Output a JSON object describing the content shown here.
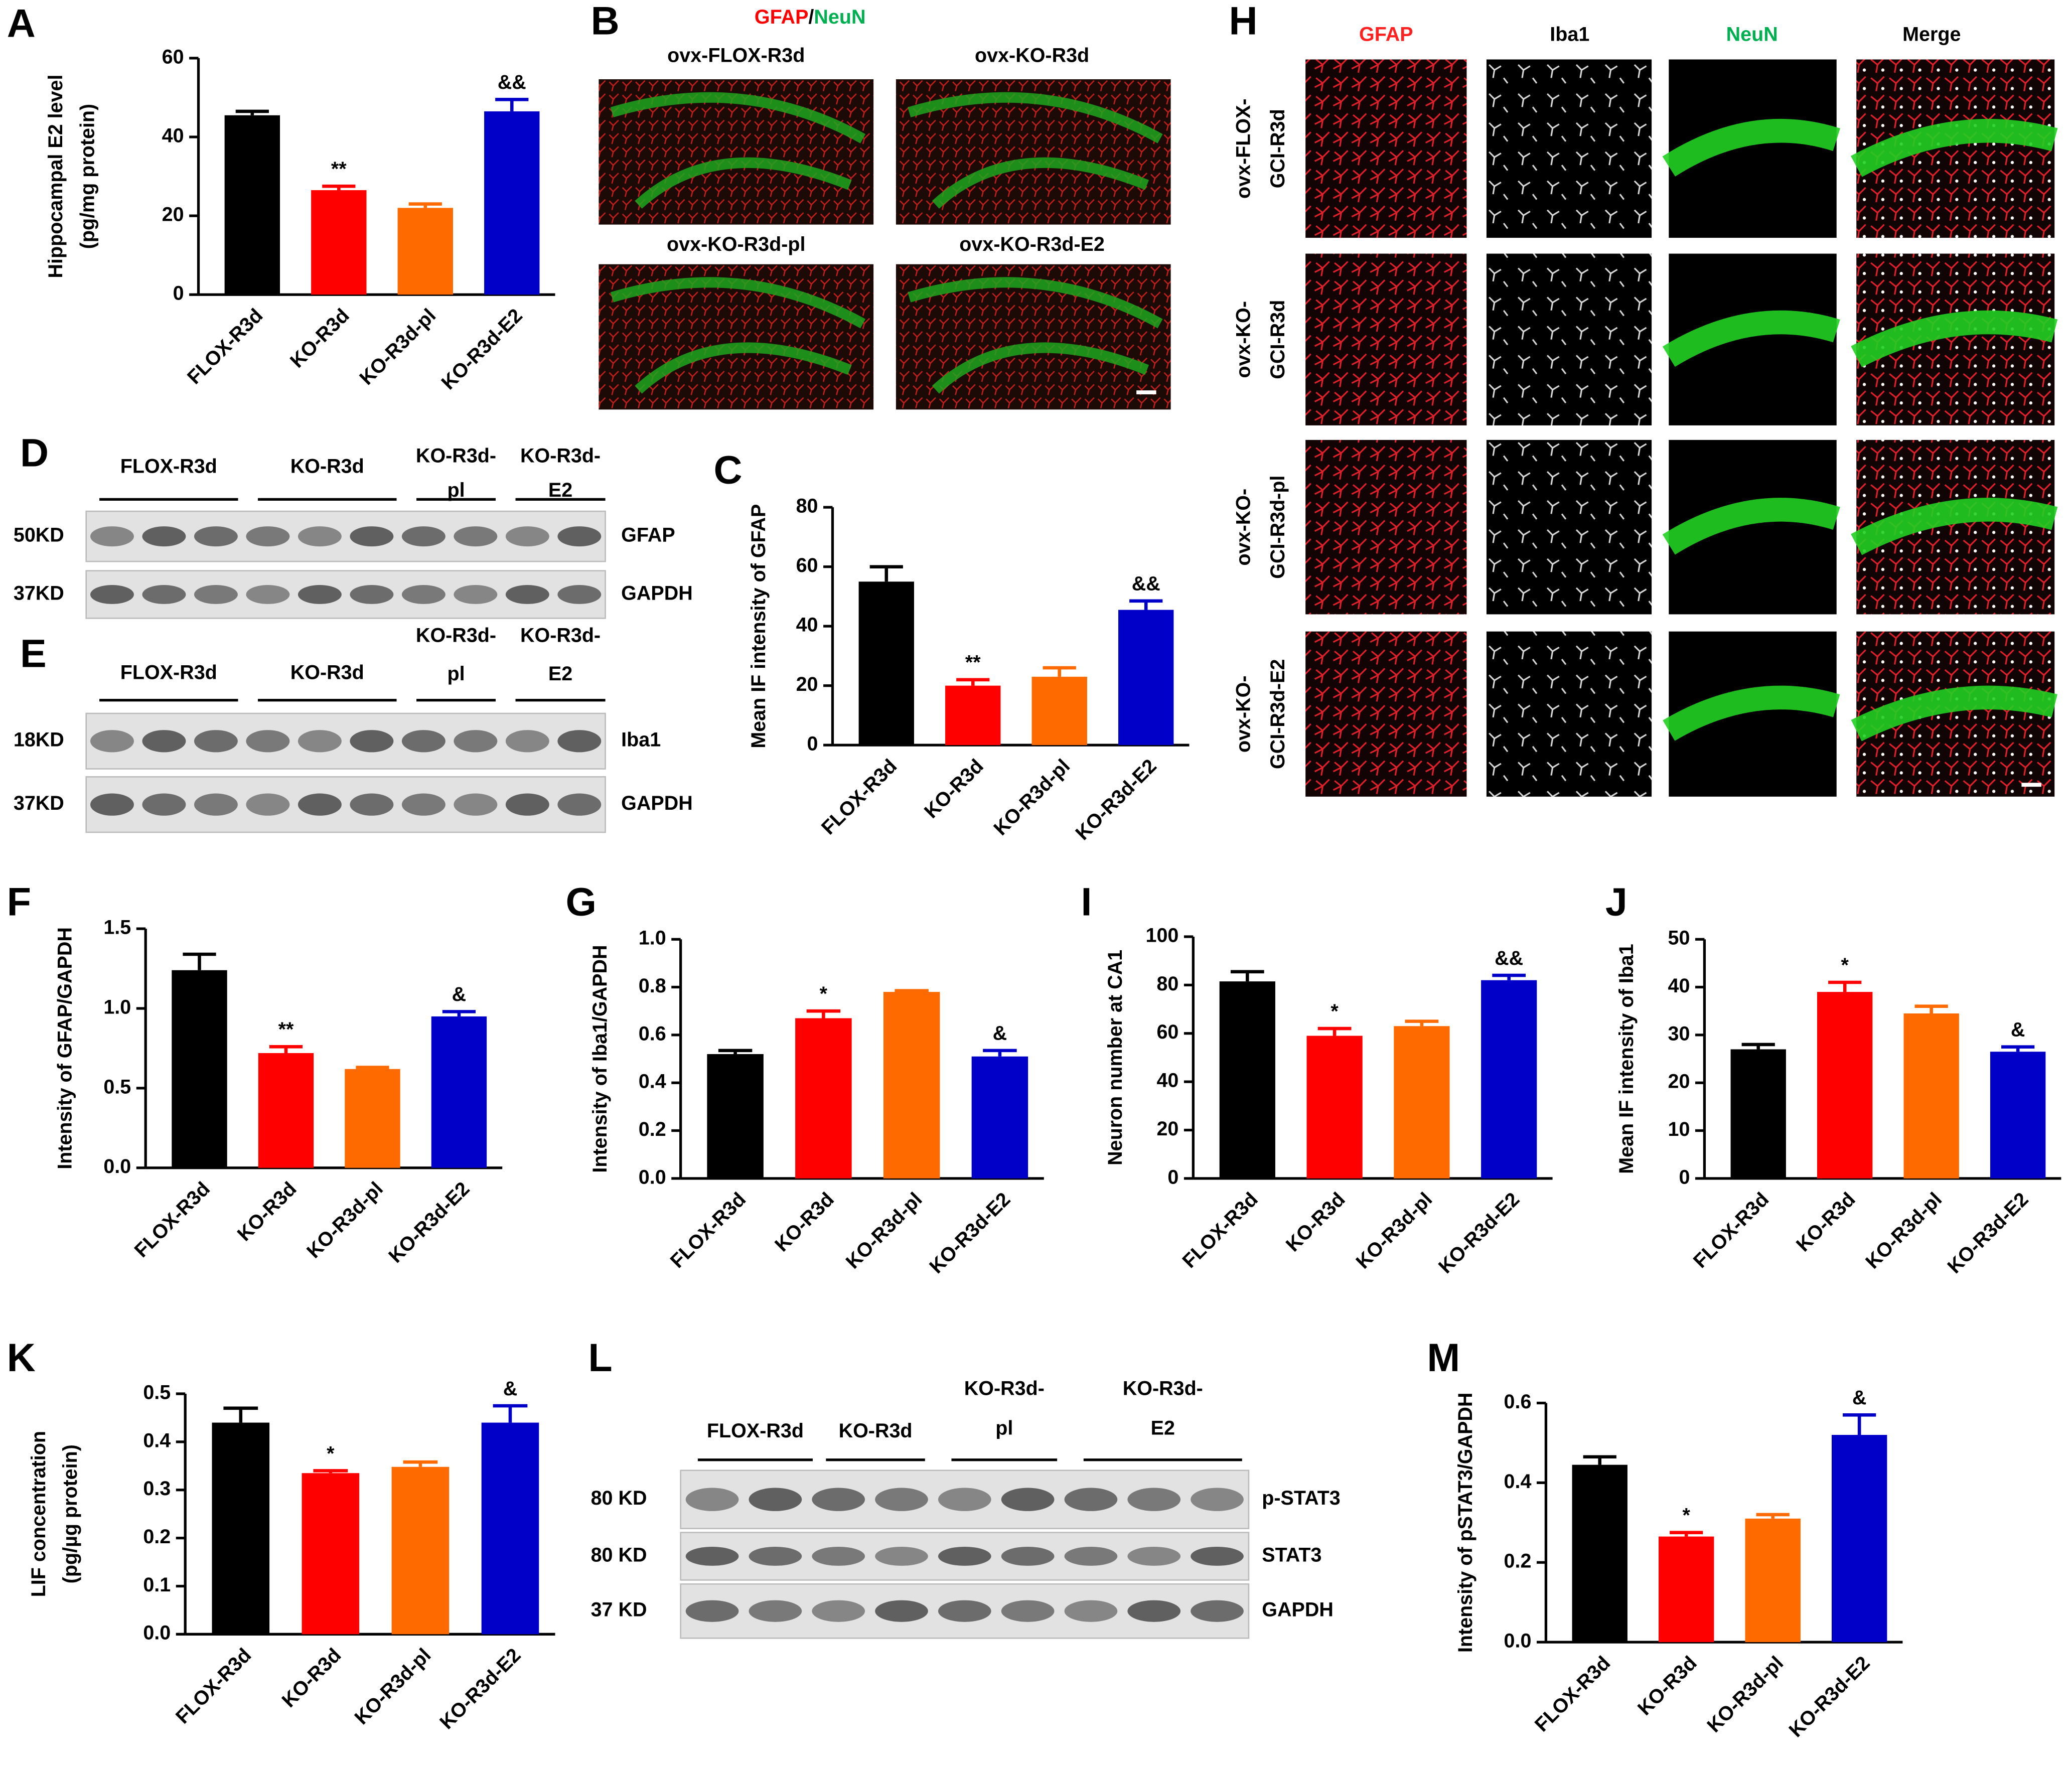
{
  "chart_data": [
    {
      "type": "bar",
      "panel": "A",
      "ylabel": [
        "Hippocampal E2 level",
        "(pg/mg protein)"
      ],
      "categories": [
        "FLOX-R3d",
        "KO-R3d",
        "KO-R3d-pl",
        "KO-R3d-E2"
      ],
      "colors": [
        "#000000",
        "#ff0000",
        "#ff6a00",
        "#0000c8"
      ],
      "values": [
        45.5,
        26.5,
        22,
        46.5
      ],
      "errors": [
        1,
        1,
        1,
        3
      ],
      "annotations": [
        null,
        "**",
        null,
        "&&"
      ],
      "ylim": [
        0,
        60
      ],
      "yticks": [
        0,
        20,
        40,
        60
      ]
    },
    {
      "type": "bar",
      "panel": "C",
      "ylabel": [
        "Mean IF intensity of GFAP"
      ],
      "categories": [
        "FLOX-R3d",
        "KO-R3d",
        "KO-R3d-pl",
        "KO-R3d-E2"
      ],
      "colors": [
        "#000000",
        "#ff0000",
        "#ff6a00",
        "#0000c8"
      ],
      "values": [
        55,
        20,
        23,
        45.5
      ],
      "errors": [
        5,
        2,
        3,
        3
      ],
      "annotations": [
        null,
        "**",
        null,
        "&&"
      ],
      "ylim": [
        0,
        80
      ],
      "yticks": [
        0,
        20,
        40,
        60,
        80
      ]
    },
    {
      "type": "bar",
      "panel": "F",
      "ylabel": [
        "Intensity of GFAP/GAPDH"
      ],
      "categories": [
        "FLOX-R3d",
        "KO-R3d",
        "KO-R3d-pl",
        "KO-R3d-E2"
      ],
      "colors": [
        "#000000",
        "#ff0000",
        "#ff6a00",
        "#0000c8"
      ],
      "values": [
        1.24,
        0.72,
        0.62,
        0.95
      ],
      "errors": [
        0.1,
        0.04,
        0.01,
        0.03
      ],
      "annotations": [
        null,
        "**",
        null,
        "&"
      ],
      "ylim": [
        0,
        1.5
      ],
      "yticks": [
        {
          "value": 0,
          "label": "0.0"
        },
        0.5,
        {
          "value": 1,
          "label": "1.0"
        },
        1.5
      ]
    },
    {
      "type": "bar",
      "panel": "G",
      "ylabel": [
        "Intensity of Iba1/GAPDH"
      ],
      "categories": [
        "FLOX-R3d",
        "KO-R3d",
        "KO-R3d-pl",
        "KO-R3d-E2"
      ],
      "colors": [
        "#000000",
        "#ff0000",
        "#ff6a00",
        "#0000c8"
      ],
      "values": [
        0.52,
        0.67,
        0.78,
        0.51
      ],
      "errors": [
        0.015,
        0.03,
        0.005,
        0.025
      ],
      "annotations": [
        null,
        "*",
        null,
        "&"
      ],
      "ylim": [
        0,
        1
      ],
      "yticks": [
        {
          "value": 0,
          "label": "0.0"
        },
        0.2,
        0.4,
        0.6,
        0.8,
        {
          "value": 1,
          "label": "1.0"
        }
      ]
    },
    {
      "type": "bar",
      "panel": "I",
      "ylabel": [
        "Neuron number at CA1"
      ],
      "categories": [
        "FLOX-R3d",
        "KO-R3d",
        "KO-R3d-pl",
        "KO-R3d-E2"
      ],
      "colors": [
        "#000000",
        "#ff0000",
        "#ff6a00",
        "#0000c8"
      ],
      "values": [
        81.5,
        59,
        63,
        82
      ],
      "errors": [
        4,
        3,
        2,
        2
      ],
      "annotations": [
        null,
        "*",
        null,
        "&&"
      ],
      "ylim": [
        0,
        100
      ],
      "yticks": [
        0,
        20,
        40,
        60,
        80,
        100
      ]
    },
    {
      "type": "bar",
      "panel": "J",
      "ylabel": [
        "Mean IF intensity of Iba1"
      ],
      "categories": [
        "FLOX-R3d",
        "KO-R3d",
        "KO-R3d-pl",
        "KO-R3d-E2"
      ],
      "colors": [
        "#000000",
        "#ff0000",
        "#ff6a00",
        "#0000c8"
      ],
      "values": [
        27,
        39,
        34.5,
        26.5
      ],
      "errors": [
        1,
        2,
        1.5,
        1
      ],
      "annotations": [
        null,
        "*",
        null,
        "&"
      ],
      "ylim": [
        0,
        50
      ],
      "yticks": [
        0,
        10,
        20,
        30,
        40,
        50
      ]
    },
    {
      "type": "bar",
      "panel": "K",
      "ylabel": [
        "LIF concentration",
        "(pg/µg protein)"
      ],
      "categories": [
        "FLOX-R3d",
        "KO-R3d",
        "KO-R3d-pl",
        "KO-R3d-E2"
      ],
      "colors": [
        "#000000",
        "#ff0000",
        "#ff6a00",
        "#0000c8"
      ],
      "values": [
        0.44,
        0.335,
        0.348,
        0.44
      ],
      "errors": [
        0.03,
        0.005,
        0.01,
        0.035
      ],
      "annotations": [
        null,
        "*",
        null,
        "&"
      ],
      "ylim": [
        0,
        0.5
      ],
      "yticks": [
        {
          "value": 0,
          "label": "0.0"
        },
        0.1,
        0.2,
        0.3,
        0.4,
        0.5
      ]
    },
    {
      "type": "bar",
      "panel": "M",
      "ylabel": [
        "Intensity of pSTAT3/GAPDH"
      ],
      "categories": [
        "FLOX-R3d",
        "KO-R3d",
        "KO-R3d-pl",
        "KO-R3d-E2"
      ],
      "colors": [
        "#000000",
        "#ff0000",
        "#ff6a00",
        "#0000c8"
      ],
      "values": [
        0.445,
        0.265,
        0.31,
        0.52
      ],
      "errors": [
        0.02,
        0.01,
        0.01,
        0.05
      ],
      "annotations": [
        null,
        "*",
        null,
        "&"
      ],
      "ylim": [
        0,
        0.6
      ],
      "yticks": [
        {
          "value": 0,
          "label": "0.0"
        },
        0.2,
        0.4,
        0.6
      ]
    }
  ],
  "images": {
    "B": {
      "panel": "B",
      "stain": [
        "GFAP",
        "/",
        "NeuN"
      ],
      "labels": [
        "ovx-FLOX-R3d",
        "ovx-KO-R3d",
        "ovx-KO-R3d-pl",
        "ovx-KO-R3d-E2"
      ]
    },
    "H": {
      "panel": "H",
      "columns": [
        "GFAP",
        "Iba1",
        "NeuN",
        "Merge"
      ],
      "rows": [
        [
          "ovx-FLOX-",
          "GCI-R3d"
        ],
        [
          "ovx-KO-",
          "GCI-R3d"
        ],
        [
          "ovx-KO-",
          "GCI-R3d-pl"
        ],
        [
          "ovx-KO-",
          "GCI-R3d-E2"
        ]
      ]
    }
  },
  "blots": [
    {
      "panel": "D",
      "groups": [
        [
          "FLOX-R3d"
        ],
        [
          "KO-R3d"
        ],
        [
          "KO-R3d-",
          "pl"
        ],
        [
          "KO-R3d-",
          "E2"
        ]
      ],
      "rows": [
        {
          "size": "50KD",
          "protein": "GFAP"
        },
        {
          "size": "37KD",
          "protein": "GAPDH"
        }
      ]
    },
    {
      "panel": "E",
      "groups": [
        [
          "FLOX-R3d"
        ],
        [
          "KO-R3d"
        ],
        [
          "KO-R3d-",
          "pl"
        ],
        [
          "KO-R3d-",
          "E2"
        ]
      ],
      "rows": [
        {
          "size": "18KD",
          "protein": "Iba1"
        },
        {
          "size": "37KD",
          "protein": "GAPDH"
        }
      ]
    },
    {
      "panel": "L",
      "groups": [
        [
          "FLOX-R3d"
        ],
        [
          "KO-R3d"
        ],
        [
          "KO-R3d-",
          "pl"
        ],
        [
          "KO-R3d-",
          "E2"
        ]
      ],
      "rows": [
        {
          "size": "80 KD",
          "protein": "p-STAT3"
        },
        {
          "size": "80 KD",
          "protein": "STAT3"
        },
        {
          "size": "37 KD",
          "protein": "GAPDH"
        }
      ]
    }
  ]
}
